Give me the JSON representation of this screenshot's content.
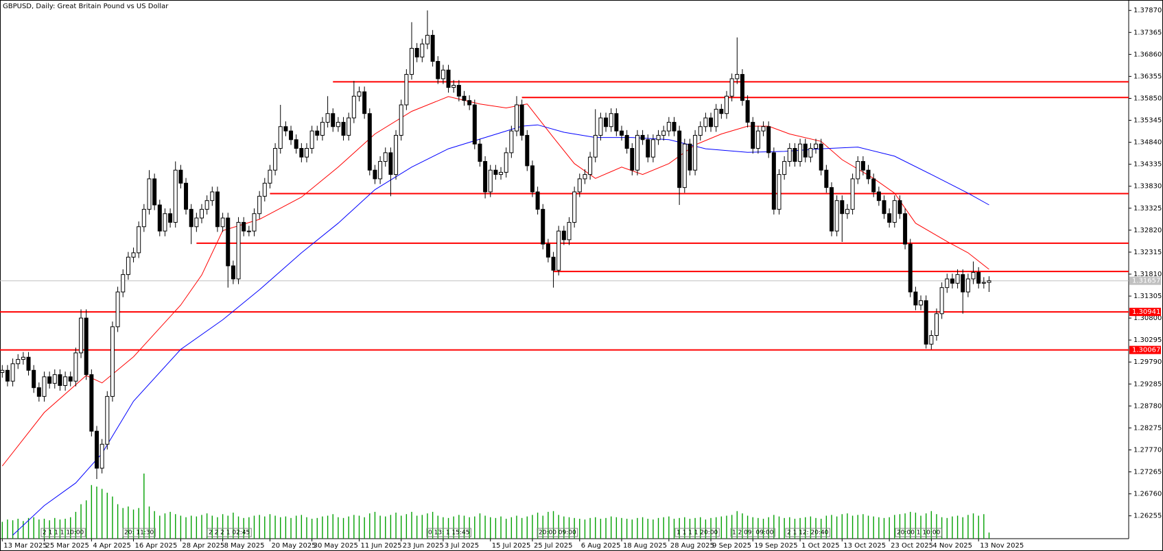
{
  "chart_data": {
    "type": "candlestick",
    "title": "GBPUSD, Daily:  Great Britain Pound vs US Dollar",
    "categories": [
      "13 Mar 2025",
      null,
      null,
      null,
      null,
      null,
      null,
      null,
      "25 Mar 2025",
      null,
      null,
      null,
      null,
      null,
      null,
      null,
      null,
      "4 Apr 2025",
      null,
      null,
      null,
      null,
      null,
      null,
      null,
      "16 Apr 2025",
      null,
      null,
      null,
      null,
      null,
      null,
      null,
      null,
      "28 Apr 2025",
      null,
      null,
      null,
      null,
      null,
      null,
      null,
      "8 May 2025",
      null,
      null,
      null,
      null,
      null,
      null,
      null,
      null,
      "20 May 2025",
      null,
      null,
      null,
      null,
      null,
      null,
      null,
      "30 May 2025",
      null,
      null,
      null,
      null,
      null,
      null,
      null,
      null,
      "11 Jun 2025",
      null,
      null,
      null,
      null,
      null,
      null,
      null,
      "23 Jun 2025",
      null,
      null,
      null,
      null,
      null,
      null,
      null,
      "3 Jul 2025",
      null,
      null,
      null,
      null,
      null,
      null,
      null,
      null,
      "15 Jul 2025",
      null,
      null,
      null,
      null,
      null,
      null,
      null,
      "25 Jul 2025",
      null,
      null,
      null,
      null,
      null,
      null,
      null,
      null,
      "6 Aug 2025",
      null,
      null,
      null,
      null,
      null,
      null,
      null,
      "18 Aug 2025",
      null,
      null,
      null,
      null,
      null,
      null,
      null,
      null,
      "28 Aug 2025",
      null,
      null,
      null,
      null,
      null,
      null,
      null,
      "9 Sep 2025",
      null,
      null,
      null,
      null,
      null,
      null,
      null,
      "19 Sep 2025",
      null,
      null,
      null,
      null,
      null,
      null,
      null,
      null,
      "1 Oct 2025",
      null,
      null,
      null,
      null,
      null,
      null,
      null,
      "13 Oct 2025",
      null,
      null,
      null,
      null,
      null,
      null,
      null,
      null,
      "23 Oct 2025",
      null,
      null,
      null,
      null,
      null,
      null,
      null,
      "4 Nov 2025",
      null,
      null,
      null,
      null,
      null,
      null,
      null,
      null,
      "13 Nov 2025",
      null,
      null
    ],
    "open": [
      1.2955,
      1.296,
      1.2935,
      1.2975,
      1.2985,
      1.299,
      1.296,
      1.292,
      1.29,
      1.2945,
      1.293,
      1.295,
      1.2925,
      1.2945,
      1.2935,
      1.3,
      1.308,
      1.295,
      1.282,
      1.2735,
      1.279,
      1.29,
      1.306,
      1.314,
      1.318,
      1.322,
      1.323,
      1.329,
      1.333,
      1.34,
      1.334,
      1.328,
      1.332,
      1.33,
      1.342,
      1.339,
      1.333,
      1.329,
      1.331,
      1.333,
      1.335,
      1.337,
      1.329,
      1.331,
      1.32,
      1.317,
      1.33,
      1.328,
      1.328,
      1.332,
      1.336,
      1.339,
      1.342,
      1.347,
      1.352,
      1.351,
      1.349,
      1.347,
      1.345,
      1.347,
      1.351,
      1.35,
      1.353,
      1.355,
      1.352,
      1.353,
      1.35,
      1.354,
      1.359,
      1.36,
      1.355,
      1.342,
      1.34,
      1.344,
      1.346,
      1.341,
      1.35,
      1.357,
      1.364,
      1.37,
      1.368,
      1.371,
      1.373,
      1.367,
      1.363,
      1.365,
      1.361,
      1.3615,
      1.359,
      1.358,
      1.357,
      1.348,
      1.344,
      1.337,
      1.342,
      1.341,
      1.3415,
      1.346,
      1.351,
      1.357,
      1.35,
      1.343,
      1.337,
      1.333,
      1.325,
      1.322,
      1.319,
      1.328,
      1.326,
      1.33,
      1.337,
      1.34,
      1.341,
      1.345,
      1.35,
      1.354,
      1.352,
      1.355,
      1.351,
      1.35,
      1.347,
      1.342,
      1.35,
      1.349,
      1.345,
      1.349,
      1.35,
      1.351,
      1.353,
      1.351,
      1.338,
      1.348,
      1.342,
      1.35,
      1.352,
      1.354,
      1.352,
      1.356,
      1.355,
      1.359,
      1.363,
      1.364,
      1.358,
      1.353,
      1.347,
      1.351,
      1.352,
      1.346,
      1.333,
      1.341,
      1.344,
      1.347,
      1.344,
      1.348,
      1.345,
      1.347,
      1.348,
      1.342,
      1.338,
      1.328,
      1.335,
      1.332,
      1.333,
      1.34,
      1.344,
      1.342,
      1.34,
      1.337,
      1.335,
      1.332,
      1.33,
      1.335,
      1.332,
      1.325,
      1.314,
      1.311,
      1.312,
      1.302,
      1.304,
      1.309,
      1.315,
      1.317,
      1.316,
      1.318,
      1.314,
      1.317,
      1.3185,
      1.316,
      1.3162
    ],
    "high": [
      1.2972,
      1.2972,
      1.2987,
      1.2997,
      1.3002,
      1.3002,
      1.2972,
      1.2932,
      1.2957,
      1.2957,
      1.2962,
      1.2962,
      1.2957,
      1.2957,
      1.3012,
      1.31,
      1.31,
      1.2962,
      1.2832,
      1.2802,
      1.2912,
      1.3072,
      1.3152,
      1.3192,
      1.3232,
      1.3242,
      1.3302,
      1.3342,
      1.342,
      1.3412,
      1.3352,
      1.3332,
      1.3332,
      1.344,
      1.3432,
      1.3402,
      1.3342,
      1.3322,
      1.3342,
      1.3362,
      1.3382,
      1.3382,
      1.3322,
      1.3322,
      1.3212,
      1.3312,
      1.3312,
      1.3292,
      1.3332,
      1.3372,
      1.3402,
      1.3432,
      1.3482,
      1.357,
      1.3532,
      1.3522,
      1.3502,
      1.3482,
      1.3482,
      1.3522,
      1.3522,
      1.3542,
      1.359,
      1.3562,
      1.3542,
      1.3542,
      1.3552,
      1.3625,
      1.3612,
      1.3612,
      1.3562,
      1.3432,
      1.3452,
      1.3472,
      1.3472,
      1.3512,
      1.3582,
      1.3652,
      1.376,
      1.3712,
      1.3722,
      1.3787,
      1.3742,
      1.3682,
      1.3662,
      1.3662,
      1.3627,
      1.3627,
      1.3602,
      1.3592,
      1.3582,
      1.3492,
      1.3452,
      1.3432,
      1.3432,
      1.3427,
      1.3472,
      1.3522,
      1.359,
      1.3582,
      1.3512,
      1.3442,
      1.3382,
      1.3342,
      1.3262,
      1.3232,
      1.3292,
      1.3292,
      1.3312,
      1.3382,
      1.3412,
      1.3422,
      1.3462,
      1.356,
      1.3552,
      1.3552,
      1.3562,
      1.3562,
      1.3522,
      1.3512,
      1.3482,
      1.3512,
      1.3512,
      1.3502,
      1.3502,
      1.3512,
      1.3522,
      1.3542,
      1.3542,
      1.3522,
      1.3492,
      1.3492,
      1.3512,
      1.3532,
      1.3552,
      1.3552,
      1.3572,
      1.3572,
      1.3602,
      1.3642,
      1.3725,
      1.3652,
      1.3592,
      1.3542,
      1.3522,
      1.3532,
      1.3532,
      1.3472,
      1.3422,
      1.3452,
      1.3482,
      1.3482,
      1.3492,
      1.3492,
      1.3482,
      1.3492,
      1.3492,
      1.3432,
      1.3392,
      1.3362,
      1.3362,
      1.3342,
      1.3412,
      1.3452,
      1.3452,
      1.3432,
      1.3412,
      1.3382,
      1.3362,
      1.3332,
      1.3362,
      1.3362,
      1.3332,
      1.3262,
      1.3152,
      1.3132,
      1.3132,
      1.3052,
      1.3102,
      1.3162,
      1.3182,
      1.3182,
      1.3192,
      1.3192,
      1.3182,
      1.321,
      1.3197,
      1.3174,
      1.3176
    ],
    "low": [
      1.2943,
      1.2923,
      1.2923,
      1.2963,
      1.2973,
      1.2948,
      1.2908,
      1.2888,
      1.2888,
      1.2918,
      1.2918,
      1.2913,
      1.2913,
      1.2923,
      1.2923,
      1.2988,
      1.2938,
      1.2808,
      1.271,
      1.2723,
      1.2778,
      1.2888,
      1.3048,
      1.3128,
      1.3168,
      1.3208,
      1.3218,
      1.3278,
      1.3318,
      1.3328,
      1.3268,
      1.3268,
      1.3288,
      1.3288,
      1.3378,
      1.3318,
      1.325,
      1.3278,
      1.3298,
      1.3318,
      1.3338,
      1.3278,
      1.3278,
      1.315,
      1.3158,
      1.3158,
      1.3268,
      1.3268,
      1.3268,
      1.3308,
      1.3348,
      1.3378,
      1.3408,
      1.3458,
      1.3498,
      1.3478,
      1.3458,
      1.3438,
      1.3438,
      1.3458,
      1.3488,
      1.3488,
      1.3518,
      1.3508,
      1.3508,
      1.3488,
      1.3488,
      1.3528,
      1.3578,
      1.3538,
      1.3408,
      1.3388,
      1.3388,
      1.3428,
      1.336,
      1.3398,
      1.3488,
      1.3558,
      1.3628,
      1.3668,
      1.3668,
      1.3698,
      1.3658,
      1.3618,
      1.3618,
      1.3598,
      1.3598,
      1.3578,
      1.3568,
      1.3558,
      1.3468,
      1.3428,
      1.3355,
      1.3358,
      1.3398,
      1.3398,
      1.3403,
      1.3448,
      1.3498,
      1.3488,
      1.3418,
      1.3358,
      1.3318,
      1.3238,
      1.3208,
      1.315,
      1.3178,
      1.3248,
      1.3248,
      1.3288,
      1.3358,
      1.3388,
      1.3398,
      1.3438,
      1.3488,
      1.3508,
      1.3508,
      1.3498,
      1.3488,
      1.3458,
      1.3408,
      1.3408,
      1.3478,
      1.3438,
      1.3438,
      1.3478,
      1.3488,
      1.3498,
      1.3498,
      1.334,
      1.3368,
      1.3408,
      1.3408,
      1.3488,
      1.3508,
      1.3508,
      1.3508,
      1.3538,
      1.3538,
      1.3578,
      1.3618,
      1.3568,
      1.3518,
      1.3458,
      1.3458,
      1.3498,
      1.3448,
      1.3318,
      1.3318,
      1.3398,
      1.3428,
      1.3428,
      1.3428,
      1.3438,
      1.3438,
      1.3458,
      1.3408,
      1.3368,
      1.3268,
      1.3268,
      1.3255,
      1.3308,
      1.3318,
      1.3388,
      1.3408,
      1.3388,
      1.3358,
      1.3338,
      1.3308,
      1.3288,
      1.3288,
      1.3308,
      1.3238,
      1.3128,
      1.3098,
      1.3098,
      1.301,
      1.3008,
      1.3028,
      1.3078,
      1.3138,
      1.3148,
      1.3148,
      1.309,
      1.3128,
      1.3158,
      1.3148,
      1.3148,
      1.314
    ],
    "close": [
      1.296,
      1.2935,
      1.2975,
      1.2985,
      1.299,
      1.296,
      1.292,
      1.29,
      1.2945,
      1.293,
      1.295,
      1.2925,
      1.2945,
      1.2935,
      1.3,
      1.308,
      1.295,
      1.282,
      1.2735,
      1.279,
      1.29,
      1.306,
      1.314,
      1.318,
      1.322,
      1.323,
      1.329,
      1.333,
      1.34,
      1.334,
      1.328,
      1.332,
      1.33,
      1.342,
      1.339,
      1.333,
      1.329,
      1.331,
      1.333,
      1.335,
      1.337,
      1.329,
      1.331,
      1.32,
      1.317,
      1.33,
      1.328,
      1.328,
      1.332,
      1.336,
      1.339,
      1.342,
      1.347,
      1.352,
      1.351,
      1.349,
      1.347,
      1.345,
      1.347,
      1.351,
      1.35,
      1.353,
      1.355,
      1.352,
      1.353,
      1.35,
      1.354,
      1.359,
      1.36,
      1.355,
      1.342,
      1.34,
      1.344,
      1.346,
      1.341,
      1.35,
      1.357,
      1.364,
      1.37,
      1.368,
      1.371,
      1.373,
      1.367,
      1.363,
      1.365,
      1.361,
      1.3615,
      1.359,
      1.358,
      1.357,
      1.348,
      1.344,
      1.337,
      1.342,
      1.341,
      1.3415,
      1.346,
      1.351,
      1.357,
      1.35,
      1.343,
      1.337,
      1.333,
      1.325,
      1.322,
      1.319,
      1.328,
      1.326,
      1.33,
      1.337,
      1.34,
      1.341,
      1.345,
      1.35,
      1.354,
      1.352,
      1.355,
      1.351,
      1.35,
      1.347,
      1.342,
      1.35,
      1.349,
      1.345,
      1.349,
      1.35,
      1.351,
      1.353,
      1.351,
      1.338,
      1.348,
      1.342,
      1.35,
      1.352,
      1.354,
      1.352,
      1.356,
      1.355,
      1.359,
      1.363,
      1.364,
      1.358,
      1.353,
      1.347,
      1.351,
      1.352,
      1.346,
      1.333,
      1.341,
      1.344,
      1.347,
      1.344,
      1.348,
      1.345,
      1.347,
      1.348,
      1.342,
      1.338,
      1.328,
      1.335,
      1.332,
      1.333,
      1.34,
      1.344,
      1.342,
      1.34,
      1.337,
      1.335,
      1.332,
      1.33,
      1.335,
      1.332,
      1.325,
      1.314,
      1.311,
      1.312,
      1.302,
      1.304,
      1.309,
      1.315,
      1.317,
      1.316,
      1.318,
      1.314,
      1.317,
      1.3185,
      1.316,
      1.3162,
      1.31657
    ],
    "volume": [
      22,
      25,
      24,
      26,
      23,
      27,
      28,
      25,
      26,
      24,
      27,
      25,
      26,
      28,
      35,
      45,
      50,
      70,
      68,
      65,
      60,
      55,
      45,
      40,
      42,
      38,
      40,
      85,
      42,
      36,
      30,
      33,
      35,
      32,
      30,
      28,
      30,
      29,
      31,
      33,
      30,
      28,
      32,
      30,
      34,
      29,
      27,
      28,
      30,
      31,
      29,
      32,
      30,
      28,
      29,
      27,
      30,
      31,
      28,
      26,
      27,
      29,
      30,
      32,
      28,
      27,
      29,
      31,
      30,
      28,
      33,
      35,
      30,
      29,
      31,
      34,
      30,
      32,
      35,
      30,
      31,
      33,
      35,
      30,
      28,
      27,
      29,
      31,
      30,
      28,
      29,
      33,
      30,
      28,
      27,
      29,
      26,
      28,
      30,
      27,
      29,
      31,
      34,
      30,
      35,
      36,
      31,
      29,
      28,
      27,
      26,
      25,
      27,
      28,
      26,
      27,
      29,
      28,
      27,
      26,
      25,
      27,
      28,
      26,
      25,
      27,
      28,
      29,
      26,
      27,
      28,
      26,
      27,
      28,
      25,
      27,
      28,
      29,
      30,
      31,
      36,
      33,
      30,
      28,
      27,
      26,
      28,
      31,
      29,
      27,
      28,
      26,
      27,
      28,
      29,
      27,
      26,
      30,
      31,
      29,
      32,
      33,
      30,
      31,
      32,
      30,
      29,
      28,
      27,
      28,
      31,
      32,
      33,
      35,
      34,
      30,
      33,
      36,
      32,
      28,
      27,
      29,
      30,
      28,
      31,
      33,
      30,
      32,
      8
    ],
    "bull_color": "#ffffff",
    "bear_color": "#000000",
    "volume_color": "#00a000",
    "ma": [
      {
        "color": "#ff0000",
        "x": [
          0,
          8,
          16,
          19,
          25,
          34,
          38,
          42,
          49,
          57,
          64,
          71,
          78,
          85,
          91,
          96,
          100,
          105,
          109,
          113,
          118,
          122,
          127,
          132,
          137,
          142,
          146,
          150,
          156,
          160,
          166,
          170,
          174,
          180,
          184,
          188
        ],
        "values": [
          1.274,
          1.2863,
          1.2948,
          1.2931,
          1.2991,
          1.311,
          1.3179,
          1.3281,
          1.3307,
          1.3358,
          1.3427,
          1.3503,
          1.3555,
          1.3589,
          1.3572,
          1.3563,
          1.3572,
          1.3495,
          1.3435,
          1.3401,
          1.3427,
          1.341,
          1.3435,
          1.3478,
          1.3503,
          1.3521,
          1.3521,
          1.3503,
          1.3486,
          1.3444,
          1.3401,
          1.3367,
          1.3298,
          1.3256,
          1.323,
          1.3192
        ]
      },
      {
        "color": "#0000ff",
        "x": [
          2,
          8,
          14,
          19,
          25,
          34,
          42,
          49,
          57,
          64,
          71,
          78,
          85,
          92,
          99,
          102,
          107,
          113,
          120,
          127,
          134,
          142,
          149,
          156,
          163,
          170,
          177,
          184,
          188
        ],
        "values": [
          1.2581,
          1.2649,
          1.2701,
          1.2769,
          1.2889,
          1.3008,
          1.3076,
          1.3145,
          1.323,
          1.3298,
          1.3375,
          1.3427,
          1.3469,
          1.3495,
          1.3521,
          1.3524,
          1.3507,
          1.3495,
          1.3495,
          1.349,
          1.3469,
          1.3461,
          1.3463,
          1.3469,
          1.3473,
          1.3452,
          1.341,
          1.3367,
          1.334
        ]
      }
    ],
    "levels": [
      1.3623,
      1.3587,
      1.3366,
      1.3252,
      1.3187
    ],
    "marked_levels": [
      1.30941,
      1.30067
    ],
    "level_color": "#ff0000",
    "events": [
      "2 1 1 1 10:00",
      "20: 11:30",
      "2 2 2 1 02:45",
      "0 13: 1 15:45",
      "20:00 09:00",
      "1 1 1 1 20:00",
      "1 2 09: 09:00",
      "2 1 12: 20:40",
      "20:00 1 10:00"
    ],
    "ylim": [
      1.2573,
      1.3811
    ],
    "yticks": [
      {
        "value": 1.3787,
        "label": "1.37870"
      },
      1.37365,
      {
        "value": 1.3686,
        "label": "1.36860"
      },
      1.36355,
      {
        "value": 1.3585,
        "label": "1.35850"
      },
      1.35345,
      {
        "value": 1.3484,
        "label": "1.34840"
      },
      1.34335,
      {
        "value": 1.3383,
        "label": "1.33830"
      },
      1.33325,
      {
        "value": 1.3282,
        "label": "1.32820"
      },
      1.32315,
      {
        "value": 1.3181,
        "label": "1.31810"
      },
      1.31305,
      {
        "value": 1.308,
        "label": "1.30800"
      },
      1.30295,
      {
        "value": 1.2979,
        "label": "1.29790"
      },
      1.29285,
      {
        "value": 1.2878,
        "label": "1.28780"
      },
      1.28275,
      {
        "value": 1.2777,
        "label": "1.27770"
      },
      1.27265,
      {
        "value": 1.2676,
        "label": "1.26760"
      },
      1.26255
    ]
  }
}
